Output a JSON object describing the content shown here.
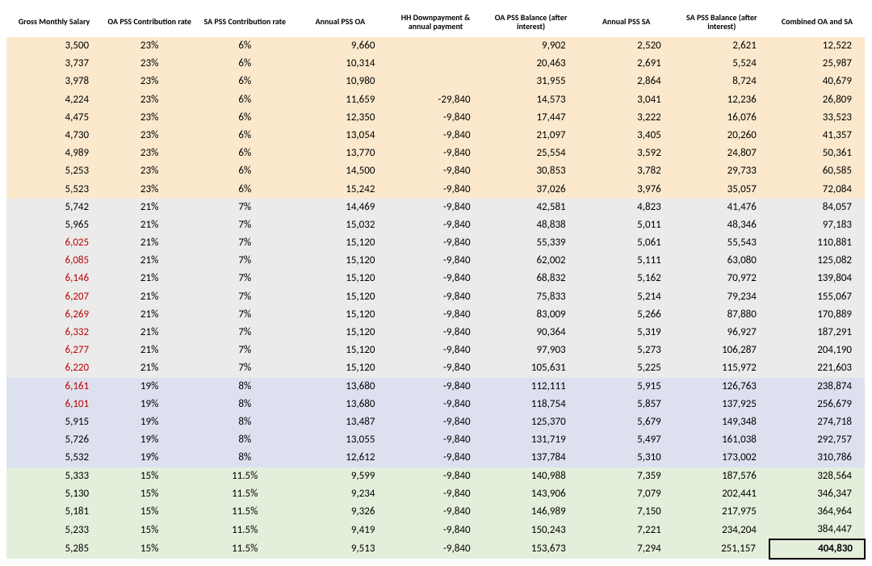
{
  "headers": [
    "Gross Monthly Salary",
    "OA PSS Contribution rate",
    "SA PSS Contribution rate",
    "Annual PSS OA",
    "HH Downpayment & annual payment",
    "OA PSS Balance (after interest)",
    "Annual PSS SA",
    "SA PSS Balance (after interest)",
    "Combined OA and SA"
  ],
  "bands": [
    {
      "start": 0,
      "end": 8,
      "bg": "#fce9cd"
    },
    {
      "start": 9,
      "end": 18,
      "bg": "#ebebeb"
    },
    {
      "start": 19,
      "end": 23,
      "bg": "#dde1ef"
    },
    {
      "start": 24,
      "end": 28,
      "bg": "#e3efdb"
    }
  ],
  "red_col0_rows": [
    11,
    12,
    13,
    14,
    15,
    16,
    17,
    18,
    19,
    20
  ],
  "rows": [
    [
      "3,500",
      "23%",
      "6%",
      "9,660",
      "",
      "9,902",
      "2,520",
      "2,621",
      "12,522"
    ],
    [
      "3,737",
      "23%",
      "6%",
      "10,314",
      "",
      "20,463",
      "2,691",
      "5,524",
      "25,987"
    ],
    [
      "3,978",
      "23%",
      "6%",
      "10,980",
      "",
      "31,955",
      "2,864",
      "8,724",
      "40,679"
    ],
    [
      "4,224",
      "23%",
      "6%",
      "11,659",
      "-29,840",
      "14,573",
      "3,041",
      "12,236",
      "26,809"
    ],
    [
      "4,475",
      "23%",
      "6%",
      "12,350",
      "-9,840",
      "17,447",
      "3,222",
      "16,076",
      "33,523"
    ],
    [
      "4,730",
      "23%",
      "6%",
      "13,054",
      "-9,840",
      "21,097",
      "3,405",
      "20,260",
      "41,357"
    ],
    [
      "4,989",
      "23%",
      "6%",
      "13,770",
      "-9,840",
      "25,554",
      "3,592",
      "24,807",
      "50,361"
    ],
    [
      "5,253",
      "23%",
      "6%",
      "14,500",
      "-9,840",
      "30,853",
      "3,782",
      "29,733",
      "60,585"
    ],
    [
      "5,523",
      "23%",
      "6%",
      "15,242",
      "-9,840",
      "37,026",
      "3,976",
      "35,057",
      "72,084"
    ],
    [
      "5,742",
      "21%",
      "7%",
      "14,469",
      "-9,840",
      "42,581",
      "4,823",
      "41,476",
      "84,057"
    ],
    [
      "5,965",
      "21%",
      "7%",
      "15,032",
      "-9,840",
      "48,838",
      "5,011",
      "48,346",
      "97,183"
    ],
    [
      "6,025",
      "21%",
      "7%",
      "15,120",
      "-9,840",
      "55,339",
      "5,061",
      "55,543",
      "110,881"
    ],
    [
      "6,085",
      "21%",
      "7%",
      "15,120",
      "-9,840",
      "62,002",
      "5,111",
      "63,080",
      "125,082"
    ],
    [
      "6,146",
      "21%",
      "7%",
      "15,120",
      "-9,840",
      "68,832",
      "5,162",
      "70,972",
      "139,804"
    ],
    [
      "6,207",
      "21%",
      "7%",
      "15,120",
      "-9,840",
      "75,833",
      "5,214",
      "79,234",
      "155,067"
    ],
    [
      "6,269",
      "21%",
      "7%",
      "15,120",
      "-9,840",
      "83,009",
      "5,266",
      "87,880",
      "170,889"
    ],
    [
      "6,332",
      "21%",
      "7%",
      "15,120",
      "-9,840",
      "90,364",
      "5,319",
      "96,927",
      "187,291"
    ],
    [
      "6,277",
      "21%",
      "7%",
      "15,120",
      "-9,840",
      "97,903",
      "5,273",
      "106,287",
      "204,190"
    ],
    [
      "6,220",
      "21%",
      "7%",
      "15,120",
      "-9,840",
      "105,631",
      "5,225",
      "115,972",
      "221,603"
    ],
    [
      "6,161",
      "19%",
      "8%",
      "13,680",
      "-9,840",
      "112,111",
      "5,915",
      "126,763",
      "238,874"
    ],
    [
      "6,101",
      "19%",
      "8%",
      "13,680",
      "-9,840",
      "118,754",
      "5,857",
      "137,925",
      "256,679"
    ],
    [
      "5,915",
      "19%",
      "8%",
      "13,487",
      "-9,840",
      "125,370",
      "5,679",
      "149,348",
      "274,718"
    ],
    [
      "5,726",
      "19%",
      "8%",
      "13,055",
      "-9,840",
      "131,719",
      "5,497",
      "161,038",
      "292,757"
    ],
    [
      "5,532",
      "19%",
      "8%",
      "12,612",
      "-9,840",
      "137,784",
      "5,310",
      "173,002",
      "310,786"
    ],
    [
      "5,333",
      "15%",
      "11.5%",
      "9,599",
      "-9,840",
      "140,988",
      "7,359",
      "187,576",
      "328,564"
    ],
    [
      "5,130",
      "15%",
      "11.5%",
      "9,234",
      "-9,840",
      "143,906",
      "7,079",
      "202,441",
      "346,347"
    ],
    [
      "5,181",
      "15%",
      "11.5%",
      "9,326",
      "-9,840",
      "146,989",
      "7,150",
      "217,975",
      "364,964"
    ],
    [
      "5,233",
      "15%",
      "11.5%",
      "9,419",
      "-9,840",
      "150,243",
      "7,221",
      "234,204",
      "384,447"
    ],
    [
      "5,285",
      "15%",
      "11.5%",
      "9,513",
      "-9,840",
      "153,673",
      "7,294",
      "251,157",
      "404,830"
    ]
  ],
  "pct_cols": [
    1,
    2
  ],
  "box_cell": {
    "row": 28,
    "col": 8
  }
}
